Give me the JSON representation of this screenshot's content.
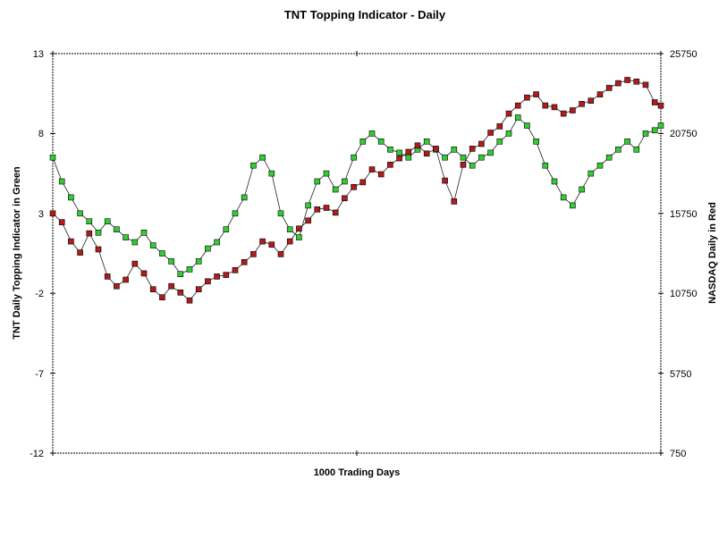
{
  "chart_data": {
    "type": "scatter",
    "title": "TNT Topping Indicator - Daily",
    "xlabel": "1000 Trading Days",
    "ylabel_left": "TNT Daily Topping Indicator in Green",
    "ylabel_right": "NASDAQ Daily in Red",
    "x_range": [
      0,
      1000
    ],
    "left_axis": {
      "range": [
        -12,
        13
      ],
      "ticks": [
        "13",
        "8",
        "3",
        "-2",
        "-7",
        "-12"
      ]
    },
    "right_axis": {
      "range": [
        750,
        25750
      ],
      "ticks": [
        "25750",
        "20750",
        "15750",
        "10750",
        "5750",
        "750"
      ]
    },
    "grid": false,
    "legend": "none",
    "series": [
      {
        "axis": "left",
        "color": "#33cc33",
        "marker": "square",
        "connected": true,
        "x": [
          0,
          15,
          30,
          45,
          60,
          75,
          90,
          105,
          120,
          135,
          150,
          165,
          180,
          195,
          210,
          225,
          240,
          255,
          270,
          285,
          300,
          315,
          330,
          345,
          360,
          375,
          390,
          405,
          420,
          435,
          450,
          465,
          480,
          495,
          510,
          525,
          540,
          555,
          570,
          585,
          600,
          615,
          630,
          645,
          660,
          675,
          690,
          705,
          720,
          735,
          750,
          765,
          780,
          795,
          810,
          825,
          840,
          855,
          870,
          885,
          900,
          915,
          930,
          945,
          960,
          975,
          990,
          1000
        ],
        "y": [
          6.5,
          5.0,
          4.0,
          3.0,
          2.5,
          1.8,
          2.5,
          2.0,
          1.5,
          1.2,
          1.8,
          1.0,
          0.5,
          0.0,
          -0.8,
          -0.5,
          0.0,
          0.8,
          1.2,
          2.0,
          3.0,
          4.0,
          6.0,
          6.5,
          5.5,
          3.0,
          2.0,
          1.5,
          3.5,
          5.0,
          5.5,
          4.5,
          5.0,
          6.5,
          7.5,
          8.0,
          7.5,
          7.0,
          6.8,
          6.5,
          7.0,
          7.5,
          7.0,
          6.5,
          7.0,
          6.5,
          6.0,
          6.5,
          6.8,
          7.5,
          8.0,
          9.0,
          8.5,
          7.5,
          6.0,
          5.0,
          4.0,
          3.5,
          4.5,
          5.5,
          6.0,
          6.5,
          7.0,
          7.5,
          7.0,
          8.0,
          8.2,
          8.5
        ]
      },
      {
        "axis": "right",
        "color": "#b01c1c",
        "marker": "square",
        "connected": true,
        "x": [
          0,
          15,
          30,
          45,
          60,
          75,
          90,
          105,
          120,
          135,
          150,
          165,
          180,
          195,
          210,
          225,
          240,
          255,
          270,
          285,
          300,
          315,
          330,
          345,
          360,
          375,
          390,
          405,
          420,
          435,
          450,
          465,
          480,
          495,
          510,
          525,
          540,
          555,
          570,
          585,
          600,
          615,
          630,
          645,
          660,
          675,
          690,
          705,
          720,
          735,
          750,
          765,
          780,
          795,
          810,
          825,
          840,
          855,
          870,
          885,
          900,
          915,
          930,
          945,
          960,
          975,
          990,
          1000
        ],
        "y": [
          15750,
          15200,
          14000,
          13300,
          14500,
          13500,
          11800,
          11200,
          11600,
          12600,
          12000,
          11000,
          10500,
          11200,
          10800,
          10300,
          11000,
          11500,
          11800,
          11900,
          12200,
          12700,
          13200,
          14000,
          13800,
          13200,
          14000,
          14800,
          15300,
          16000,
          16100,
          15800,
          16700,
          17400,
          17700,
          18500,
          18200,
          18800,
          19200,
          19600,
          20000,
          19500,
          19800,
          17800,
          16500,
          18800,
          19800,
          20100,
          20800,
          21200,
          22000,
          22500,
          23000,
          23200,
          22500,
          22400,
          22000,
          22200,
          22600,
          22800,
          23200,
          23600,
          23900,
          24100,
          24000,
          23800,
          22700,
          22500
        ]
      }
    ]
  }
}
